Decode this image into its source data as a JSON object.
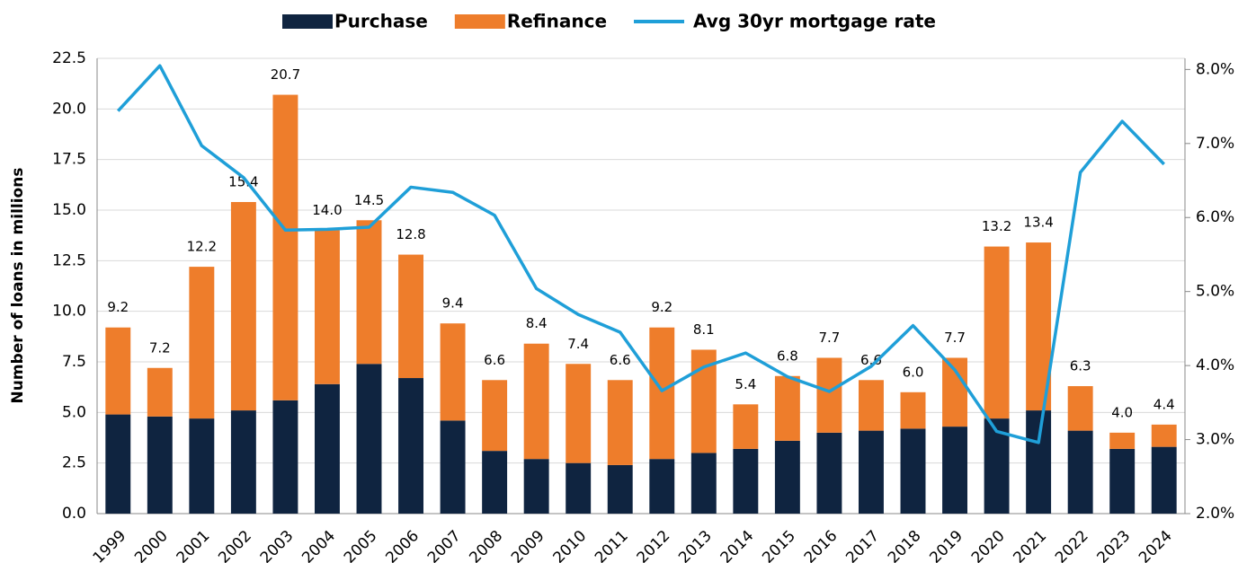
{
  "chart_data": {
    "type": "bar",
    "y_label": "Number of loans in millions",
    "categories": [
      "1999",
      "2000",
      "2001",
      "2002",
      "2003",
      "2004",
      "2005",
      "2006",
      "2007",
      "2008",
      "2009",
      "2010",
      "2011",
      "2012",
      "2013",
      "2014",
      "2015",
      "2016",
      "2017",
      "2018",
      "2019",
      "2020",
      "2021",
      "2022",
      "2023",
      "2024"
    ],
    "series": [
      {
        "name": "Purchase",
        "color": "#0f2440",
        "values": [
          4.9,
          4.8,
          4.7,
          5.1,
          5.6,
          6.4,
          7.4,
          6.7,
          4.6,
          3.1,
          2.7,
          2.5,
          2.4,
          2.7,
          3.0,
          3.2,
          3.6,
          4.0,
          4.1,
          4.2,
          4.3,
          4.7,
          5.1,
          4.1,
          3.2,
          3.3
        ]
      },
      {
        "name": "Refinance",
        "color": "#ee7d2b",
        "values": [
          4.3,
          2.4,
          7.5,
          10.3,
          15.1,
          7.6,
          7.1,
          6.1,
          4.8,
          3.5,
          5.7,
          4.9,
          4.2,
          6.5,
          5.1,
          2.2,
          3.2,
          3.7,
          2.5,
          1.8,
          3.4,
          8.5,
          8.3,
          2.2,
          0.8,
          1.1
        ]
      },
      {
        "name": "Avg 30yr mortgage rate",
        "color": "#1f9fd8",
        "type": "line",
        "axis": "y2",
        "values": [
          7.44,
          8.05,
          6.97,
          6.54,
          5.83,
          5.84,
          5.87,
          6.41,
          6.34,
          6.03,
          5.04,
          4.69,
          4.45,
          3.66,
          3.98,
          4.17,
          3.85,
          3.65,
          3.99,
          4.54,
          3.94,
          3.11,
          2.96,
          6.61,
          7.3,
          6.72
        ]
      }
    ],
    "total_labels": [
      "9.2",
      "7.2",
      "12.2",
      "15.4",
      "20.7",
      "14.0",
      "14.5",
      "12.8",
      "9.4",
      "6.6",
      "8.4",
      "7.4",
      "6.6",
      "9.2",
      "8.1",
      "5.4",
      "6.8",
      "7.7",
      "6.6",
      "6.0",
      "7.7",
      "13.2",
      "13.4",
      "6.3",
      "4.0",
      "4.4"
    ],
    "ylim": [
      0,
      22.5
    ],
    "yticks": [
      {
        "value": 0,
        "label": "0.0"
      },
      2.5,
      {
        "value": 5,
        "label": "5.0"
      },
      7.5,
      {
        "value": 10,
        "label": "10.0"
      },
      12.5,
      {
        "value": 15,
        "label": "15.0"
      },
      17.5,
      {
        "value": 20,
        "label": "20.0"
      },
      22.5
    ],
    "y2lim": [
      2,
      8.15
    ],
    "y2ticks": [
      {
        "value": 2,
        "label": "2.0%"
      },
      {
        "value": 3,
        "label": "3.0%"
      },
      {
        "value": 4,
        "label": "4.0%"
      },
      {
        "value": 5,
        "label": "5.0%"
      },
      {
        "value": 6,
        "label": "6.0%"
      },
      {
        "value": 7,
        "label": "7.0%"
      },
      {
        "value": 8,
        "label": "8.0%"
      }
    ],
    "grid": true,
    "legend": "top"
  }
}
